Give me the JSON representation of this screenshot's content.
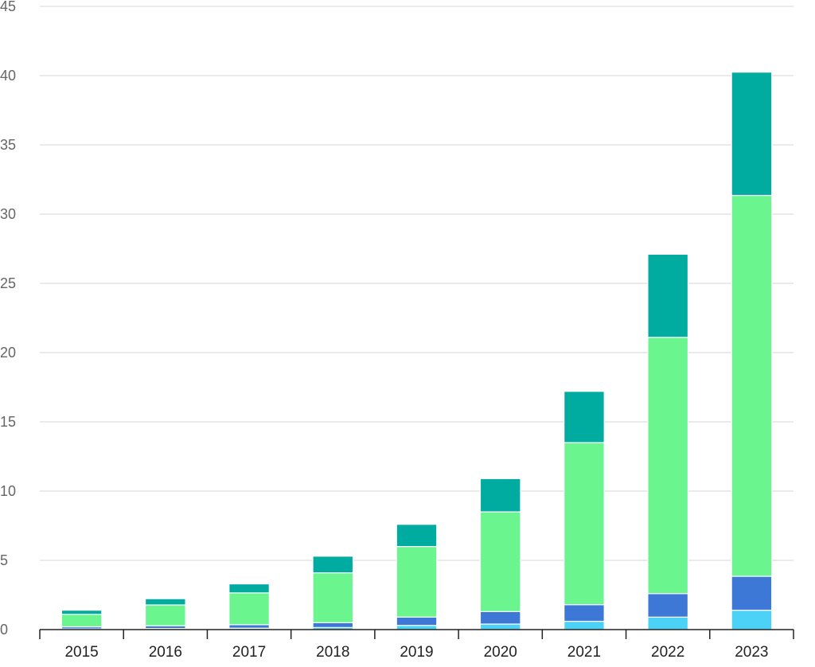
{
  "chart_data": {
    "type": "bar",
    "stacked": true,
    "categories": [
      "2015",
      "2016",
      "2017",
      "2018",
      "2019",
      "2020",
      "2021",
      "2022",
      "2023"
    ],
    "series": [
      {
        "color": "#4dd2f7",
        "values": [
          0.05,
          0.08,
          0.1,
          0.15,
          0.3,
          0.4,
          0.6,
          0.9,
          1.4
        ]
      },
      {
        "color": "#3d78d6",
        "values": [
          0.15,
          0.2,
          0.25,
          0.35,
          0.6,
          0.9,
          1.2,
          1.7,
          2.45
        ]
      },
      {
        "color": "#6af58f",
        "values": [
          0.9,
          1.5,
          2.3,
          3.6,
          5.1,
          7.2,
          11.7,
          18.5,
          27.5
        ]
      },
      {
        "color": "#00ab9f",
        "values": [
          0.3,
          0.45,
          0.65,
          1.2,
          1.6,
          2.4,
          3.7,
          6.0,
          8.9
        ]
      }
    ],
    "ylim": [
      0,
      45
    ],
    "yticks": [
      "0",
      "5",
      "10",
      "15",
      "20",
      "25",
      "30",
      "35",
      "40",
      "45"
    ],
    "xlabel": "",
    "ylabel": "",
    "grid": true,
    "legend": "none"
  }
}
